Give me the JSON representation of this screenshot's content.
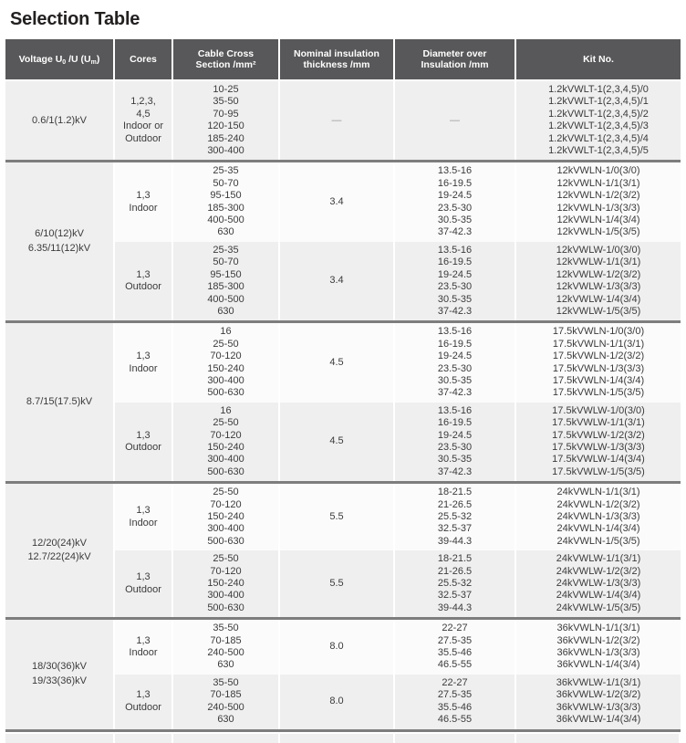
{
  "page_title": "Selection Table",
  "colors": {
    "header_bg": "#58585a",
    "row_gray": "#efefef",
    "row_white": "#fbfbfb",
    "block_separator": "#7d7d7d",
    "text": "#3b3b3b"
  },
  "table": {
    "headers": {
      "voltage": {
        "pre": "Voltage U",
        "sub1": "0",
        "mid": " /U (U",
        "sub2": "m",
        "post": ")"
      },
      "cores": "Cores",
      "cross": {
        "line1": "Cable Cross",
        "line2": "Section /mm²"
      },
      "thickness": {
        "line1": "Nominal insulation",
        "line2": "thickness /mm"
      },
      "diameter": {
        "line1": "Diameter over",
        "line2": "Insulation /mm"
      },
      "kit": "Kit No."
    },
    "blocks": [
      {
        "voltage_lines": [
          "0.6/1(1.2)kV"
        ],
        "subrows": [
          {
            "shade": "gray",
            "cores_lines": [
              "1,2,3,",
              "4,5",
              "Indoor or",
              "Outdoor"
            ],
            "cross": [
              "10-25",
              "35-50",
              "70-95",
              "120-150",
              "185-240",
              "300-400"
            ],
            "thickness": "—",
            "diameter": [
              "—"
            ],
            "kits": [
              "1.2kVWLT-1(2,3,4,5)/0",
              "1.2kVWLT-1(2,3,4,5)/1",
              "1.2kVWLT-1(2,3,4,5)/2",
              "1.2kVWLT-1(2,3,4,5)/3",
              "1.2kVWLT-1(2,3,4,5)/4",
              "1.2kVWLT-1(2,3,4,5)/5"
            ]
          }
        ]
      },
      {
        "voltage_lines": [
          "6/10(12)kV",
          "6.35/11(12)kV"
        ],
        "subrows": [
          {
            "shade": "white",
            "cores_lines": [
              "1,3",
              "Indoor"
            ],
            "cross": [
              "25-35",
              "50-70",
              "95-150",
              "185-300",
              "400-500",
              "630"
            ],
            "thickness": "3.4",
            "diameter": [
              "13.5-16",
              "16-19.5",
              "19-24.5",
              "23.5-30",
              "30.5-35",
              "37-42.3"
            ],
            "kits": [
              "12kVWLN-1/0(3/0)",
              "12kVWLN-1/1(3/1)",
              "12kVWLN-1/2(3/2)",
              "12kVWLN-1/3(3/3)",
              "12kVWLN-1/4(3/4)",
              "12kVWLN-1/5(3/5)"
            ]
          },
          {
            "shade": "gray",
            "cores_lines": [
              "1,3",
              "Outdoor"
            ],
            "cross": [
              "25-35",
              "50-70",
              "95-150",
              "185-300",
              "400-500",
              "630"
            ],
            "thickness": "3.4",
            "diameter": [
              "13.5-16",
              "16-19.5",
              "19-24.5",
              "23.5-30",
              "30.5-35",
              "37-42.3"
            ],
            "kits": [
              "12kVWLW-1/0(3/0)",
              "12kVWLW-1/1(3/1)",
              "12kVWLW-1/2(3/2)",
              "12kVWLW-1/3(3/3)",
              "12kVWLW-1/4(3/4)",
              "12kVWLW-1/5(3/5)"
            ]
          }
        ]
      },
      {
        "voltage_lines": [
          "8.7/15(17.5)kV"
        ],
        "subrows": [
          {
            "shade": "white",
            "cores_lines": [
              "1,3",
              "Indoor"
            ],
            "cross": [
              "16",
              "25-50",
              "70-120",
              "150-240",
              "300-400",
              "500-630"
            ],
            "thickness": "4.5",
            "diameter": [
              "13.5-16",
              "16-19.5",
              "19-24.5",
              "23.5-30",
              "30.5-35",
              "37-42.3"
            ],
            "kits": [
              "17.5kVWLN-1/0(3/0)",
              "17.5kVWLN-1/1(3/1)",
              "17.5kVWLN-1/2(3/2)",
              "17.5kVWLN-1/3(3/3)",
              "17.5kVWLN-1/4(3/4)",
              "17.5kVWLN-1/5(3/5)"
            ]
          },
          {
            "shade": "gray",
            "cores_lines": [
              "1,3",
              "Outdoor"
            ],
            "cross": [
              "16",
              "25-50",
              "70-120",
              "150-240",
              "300-400",
              "500-630"
            ],
            "thickness": "4.5",
            "diameter": [
              "13.5-16",
              "16-19.5",
              "19-24.5",
              "23.5-30",
              "30.5-35",
              "37-42.3"
            ],
            "kits": [
              "17.5kVWLW-1/0(3/0)",
              "17.5kVWLW-1/1(3/1)",
              "17.5kVWLW-1/2(3/2)",
              "17.5kVWLW-1/3(3/3)",
              "17.5kVWLW-1/4(3/4)",
              "17.5kVWLW-1/5(3/5)"
            ]
          }
        ]
      },
      {
        "voltage_lines": [
          "12/20(24)kV",
          "12.7/22(24)kV"
        ],
        "subrows": [
          {
            "shade": "white",
            "cores_lines": [
              "1,3",
              "Indoor"
            ],
            "cross": [
              "25-50",
              "70-120",
              "150-240",
              "300-400",
              "500-630"
            ],
            "thickness": "5.5",
            "diameter": [
              "18-21.5",
              "21-26.5",
              "25.5-32",
              "32.5-37",
              "39-44.3"
            ],
            "kits": [
              "24kVWLN-1/1(3/1)",
              "24kVWLN-1/2(3/2)",
              "24kVWLN-1/3(3/3)",
              "24kVWLN-1/4(3/4)",
              "24kVWLN-1/5(3/5)"
            ]
          },
          {
            "shade": "gray",
            "cores_lines": [
              "1,3",
              "Outdoor"
            ],
            "cross": [
              "25-50",
              "70-120",
              "150-240",
              "300-400",
              "500-630"
            ],
            "thickness": "5.5",
            "diameter": [
              "18-21.5",
              "21-26.5",
              "25.5-32",
              "32.5-37",
              "39-44.3"
            ],
            "kits": [
              "24kVWLW-1/1(3/1)",
              "24kVWLW-1/2(3/2)",
              "24kVWLW-1/3(3/3)",
              "24kVWLW-1/4(3/4)",
              "24kVWLW-1/5(3/5)"
            ]
          }
        ]
      },
      {
        "voltage_lines": [
          "18/30(36)kV",
          "19/33(36)kV"
        ],
        "subrows": [
          {
            "shade": "white",
            "cores_lines": [
              "1,3",
              "Indoor"
            ],
            "cross": [
              "35-50",
              "70-185",
              "240-500",
              "630"
            ],
            "thickness": "8.0",
            "diameter": [
              "22-27",
              "27.5-35",
              "35.5-46",
              "46.5-55"
            ],
            "kits": [
              "36kVWLN-1/1(3/1)",
              "36kVWLN-1/2(3/2)",
              "36kVWLN-1/3(3/3)",
              "36kVWLN-1/4(3/4)"
            ]
          },
          {
            "shade": "gray",
            "cores_lines": [
              "1,3",
              "Outdoor"
            ],
            "cross": [
              "35-50",
              "70-185",
              "240-500",
              "630"
            ],
            "thickness": "8.0",
            "diameter": [
              "22-27",
              "27.5-35",
              "35.5-46",
              "46.5-55"
            ],
            "kits": [
              "36kVWLW-1/1(3/1)",
              "36kVWLW-1/2(3/2)",
              "36kVWLW-1/3(3/3)",
              "36kVWLW-1/4(3/4)"
            ]
          }
        ]
      }
    ]
  }
}
